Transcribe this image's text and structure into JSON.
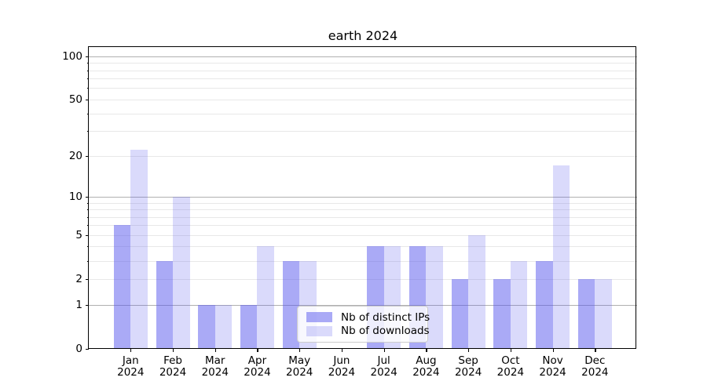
{
  "chart_data": {
    "type": "bar",
    "title": "earth 2024",
    "categories": [
      "Jan",
      "Feb",
      "Mar",
      "Apr",
      "May",
      "Jun",
      "Jul",
      "Aug",
      "Sep",
      "Oct",
      "Nov",
      "Dec"
    ],
    "xtick_year": "2024",
    "series": [
      {
        "name": "Nb of distinct IPs",
        "slug": "distinct-ips",
        "color": "rgba(85,85,238,0.5)",
        "values": [
          6,
          3,
          1,
          1,
          3,
          0,
          4,
          4,
          2,
          2,
          3,
          2
        ]
      },
      {
        "name": "Nb of downloads",
        "slug": "downloads",
        "color": "rgba(85,85,238,0.22)",
        "values": [
          22,
          10,
          1,
          4,
          3,
          0,
          4,
          4,
          5,
          3,
          17,
          2
        ]
      }
    ],
    "yscale": "log1p",
    "ylim": [
      0,
      115
    ],
    "ytick_labels": [
      0,
      1,
      2,
      5,
      10,
      20,
      50,
      100
    ],
    "major_gridlines": [
      1,
      10,
      100
    ],
    "minor_gridlines": [
      2,
      3,
      4,
      5,
      6,
      7,
      8,
      9,
      20,
      30,
      40,
      50,
      60,
      70,
      80,
      90
    ],
    "grid": "on",
    "legend_position": "lower center"
  },
  "colors": {
    "bar_distinct_ips": "#aaaaf2",
    "bar_downloads": "#dadaf8",
    "major_grid": "#b0b0b0",
    "minor_grid": "#e8e8e8",
    "spine": "#000000",
    "legend_border": "#cccccc",
    "background": "#ffffff"
  }
}
